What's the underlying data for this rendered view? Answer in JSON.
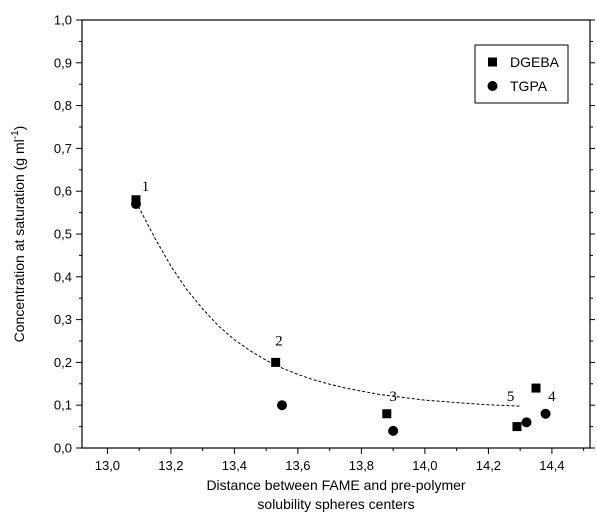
{
  "chart_data": {
    "type": "scatter",
    "xlabel_lines": [
      "Distance between FAME and pre-polymer",
      "solubility spheres centers"
    ],
    "ylabel": "Concentration at saturation (g ml",
    "ylabel_sup": "-1",
    "ylabel_close": ")",
    "xlim": [
      12.92,
      14.52
    ],
    "ylim": [
      0.0,
      1.0
    ],
    "x_ticks": [
      13.0,
      13.2,
      13.4,
      13.6,
      13.8,
      14.0,
      14.2,
      14.4
    ],
    "x_tick_labels": [
      "13,0",
      "13,2",
      "13,4",
      "13,6",
      "13,8",
      "14,0",
      "14,2",
      "14,4"
    ],
    "y_ticks": [
      0.0,
      0.1,
      0.2,
      0.3,
      0.4,
      0.5,
      0.6,
      0.7,
      0.8,
      0.9,
      1.0
    ],
    "y_tick_labels": [
      "0,0",
      "0,1",
      "0,2",
      "0,3",
      "0,4",
      "0,5",
      "0,6",
      "0,7",
      "0,8",
      "0,9",
      "1,0"
    ],
    "grid": false,
    "legend_position": "top-right",
    "series": [
      {
        "name": "DGEBA",
        "marker": "square",
        "color": "#000000",
        "points": [
          {
            "x": 13.09,
            "y": 0.58
          },
          {
            "x": 13.53,
            "y": 0.2
          },
          {
            "x": 13.88,
            "y": 0.08
          },
          {
            "x": 14.35,
            "y": 0.14
          },
          {
            "x": 14.29,
            "y": 0.05
          }
        ]
      },
      {
        "name": "TGPA",
        "marker": "circle",
        "color": "#000000",
        "points": [
          {
            "x": 13.09,
            "y": 0.57
          },
          {
            "x": 13.55,
            "y": 0.1
          },
          {
            "x": 13.9,
            "y": 0.04
          },
          {
            "x": 14.38,
            "y": 0.08
          },
          {
            "x": 14.32,
            "y": 0.06
          }
        ]
      }
    ],
    "point_labels": [
      {
        "text": "1",
        "x": 13.12,
        "y": 0.6
      },
      {
        "text": "2",
        "x": 13.54,
        "y": 0.24
      },
      {
        "text": "3",
        "x": 13.9,
        "y": 0.11
      },
      {
        "text": "4",
        "x": 14.4,
        "y": 0.11
      },
      {
        "text": "5",
        "x": 14.27,
        "y": 0.11
      }
    ],
    "trend_curve": {
      "style": "dashed",
      "points": [
        {
          "x": 13.09,
          "y": 0.575
        },
        {
          "x": 13.15,
          "y": 0.49
        },
        {
          "x": 13.2,
          "y": 0.425
        },
        {
          "x": 13.25,
          "y": 0.37
        },
        {
          "x": 13.3,
          "y": 0.325
        },
        {
          "x": 13.35,
          "y": 0.285
        },
        {
          "x": 13.4,
          "y": 0.253
        },
        {
          "x": 13.45,
          "y": 0.227
        },
        {
          "x": 13.5,
          "y": 0.205
        },
        {
          "x": 13.55,
          "y": 0.187
        },
        {
          "x": 13.6,
          "y": 0.172
        },
        {
          "x": 13.65,
          "y": 0.159
        },
        {
          "x": 13.7,
          "y": 0.149
        },
        {
          "x": 13.75,
          "y": 0.14
        },
        {
          "x": 13.8,
          "y": 0.133
        },
        {
          "x": 13.85,
          "y": 0.126
        },
        {
          "x": 13.9,
          "y": 0.121
        },
        {
          "x": 14.0,
          "y": 0.112
        },
        {
          "x": 14.1,
          "y": 0.106
        },
        {
          "x": 14.2,
          "y": 0.101
        },
        {
          "x": 14.3,
          "y": 0.098
        }
      ]
    }
  }
}
